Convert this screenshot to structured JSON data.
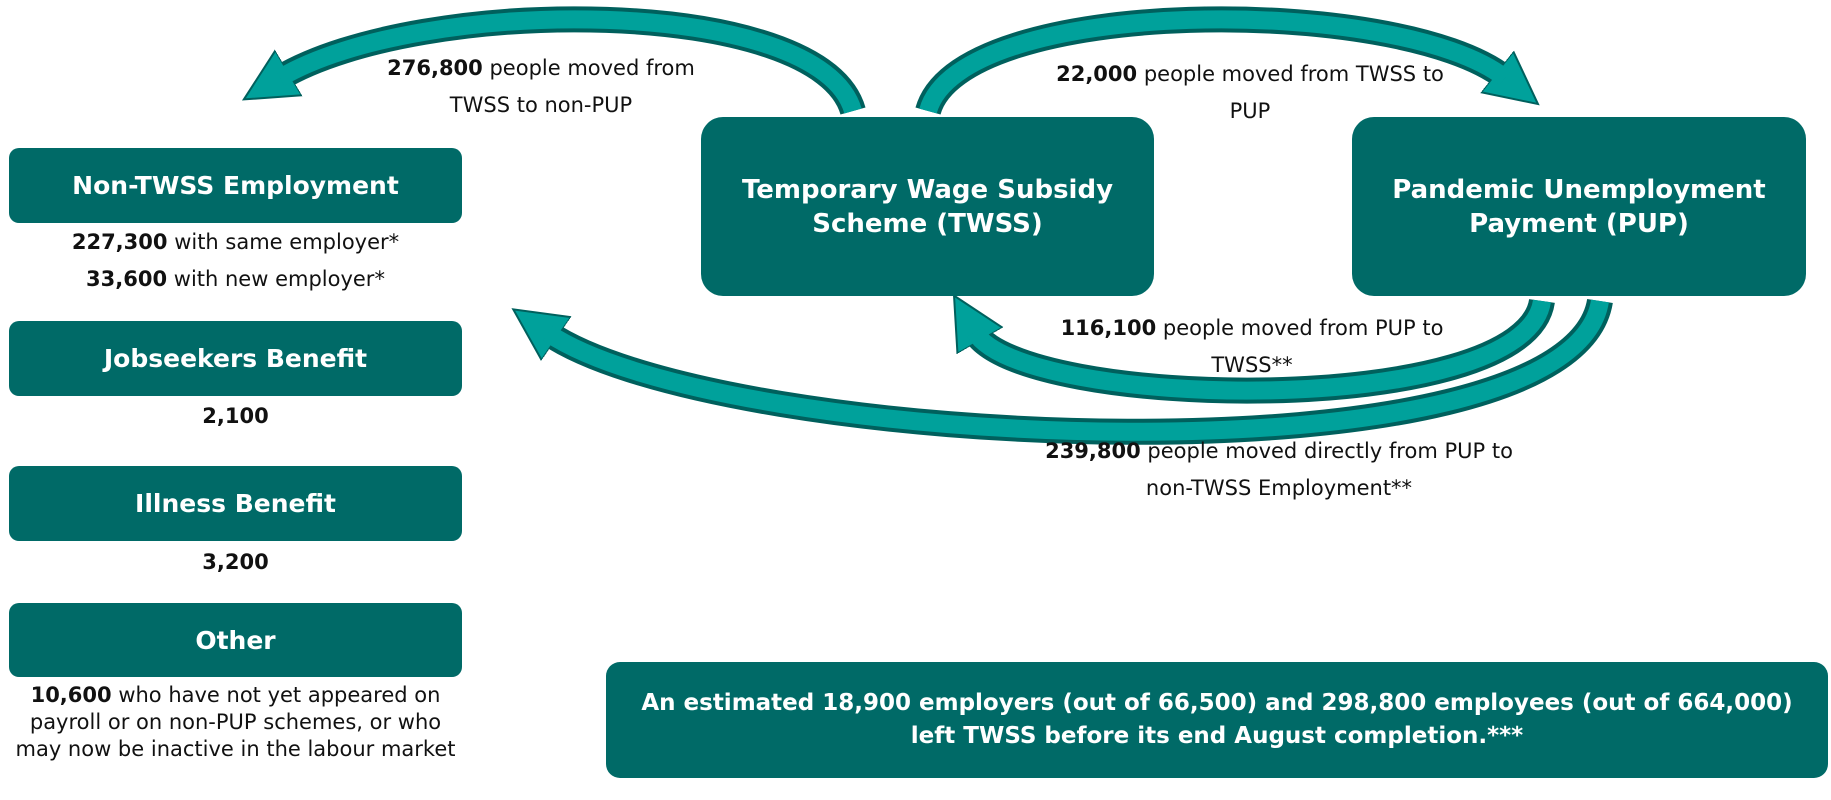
{
  "boxes": [
    {
      "label": "Non-TWSS Employment"
    },
    {
      "label": "Jobseekers Benefit"
    },
    {
      "label": "Illness Benefit"
    },
    {
      "label": "Other"
    },
    {
      "label": "Temporary Wage Subsidy Scheme (TWSS)"
    },
    {
      "label": "Pandemic Unemployment Payment (PUP)"
    }
  ],
  "details": {
    "non_twss": [
      {
        "number": "227,300",
        "text": "with same employer*"
      },
      {
        "number": "33,600",
        "text": "with new employer*"
      }
    ],
    "jobseekers": "2,100",
    "illness": "3,200",
    "other": {
      "number": "10,600",
      "text": "who have not yet appeared on payroll or on non-PUP schemes, or who may now be inactive in the labour market"
    }
  },
  "flows": [
    {
      "number": "276,800",
      "text": "people moved from TWSS to non-PUP"
    },
    {
      "number": "22,000",
      "text": "people moved from TWSS to PUP"
    },
    {
      "number": "116,100",
      "text": "people moved from PUP to TWSS**"
    },
    {
      "number": "239,800",
      "text": "people moved directly from PUP to non-TWSS Employment**"
    }
  ],
  "summary": "An estimated 18,900 employers (out of 66,500) and 298,800 employees (out of 664,000) left TWSS before its end August completion.***"
}
